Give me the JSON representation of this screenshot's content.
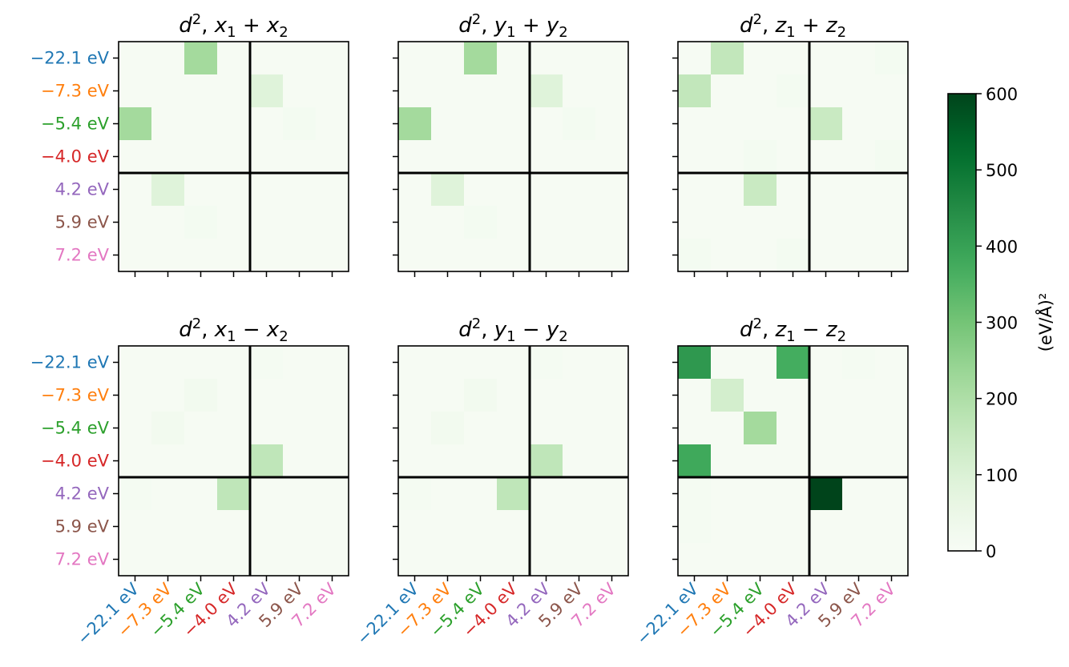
{
  "chart_data": {
    "type": "heatmap",
    "colormap": "Greens",
    "colorbar": {
      "label": "(eV/Å)²",
      "range": [
        0,
        600
      ],
      "ticks": [
        "0",
        "100",
        "200",
        "300",
        "400",
        "500",
        "600"
      ]
    },
    "energy_labels": [
      {
        "text": "−22.1 eV",
        "color": "#1f77b4"
      },
      {
        "text": "−7.3 eV",
        "color": "#ff7f0e"
      },
      {
        "text": "−5.4 eV",
        "color": "#2ca02c"
      },
      {
        "text": "−4.0 eV",
        "color": "#d62728"
      },
      {
        "text": "4.2 eV",
        "color": "#9467bd"
      },
      {
        "text": "5.9 eV",
        "color": "#8c564b"
      },
      {
        "text": "7.2 eV",
        "color": "#e377c2"
      }
    ],
    "panels": [
      {
        "title_parts": [
          "d",
          "2",
          ", ",
          "x",
          "1",
          " + ",
          "x",
          "2"
        ],
        "values": [
          [
            6,
            6,
            220,
            6,
            6,
            6,
            6
          ],
          [
            6,
            6,
            6,
            6,
            90,
            6,
            6
          ],
          [
            220,
            6,
            6,
            6,
            6,
            15,
            6
          ],
          [
            6,
            6,
            6,
            6,
            6,
            6,
            6
          ],
          [
            6,
            90,
            6,
            6,
            6,
            6,
            6
          ],
          [
            6,
            6,
            15,
            6,
            6,
            6,
            6
          ],
          [
            6,
            6,
            6,
            6,
            6,
            6,
            6
          ]
        ]
      },
      {
        "title_parts": [
          "d",
          "2",
          ", ",
          "y",
          "1",
          " + ",
          "y",
          "2"
        ],
        "values": [
          [
            6,
            6,
            220,
            6,
            6,
            6,
            6
          ],
          [
            6,
            6,
            6,
            6,
            90,
            6,
            6
          ],
          [
            220,
            6,
            6,
            6,
            6,
            15,
            6
          ],
          [
            6,
            6,
            6,
            6,
            6,
            6,
            6
          ],
          [
            6,
            90,
            6,
            6,
            6,
            6,
            6
          ],
          [
            6,
            6,
            15,
            6,
            6,
            6,
            6
          ],
          [
            6,
            6,
            6,
            6,
            6,
            6,
            6
          ]
        ]
      },
      {
        "title_parts": [
          "d",
          "2",
          ", ",
          "z",
          "1",
          " + ",
          "z",
          "2"
        ],
        "values": [
          [
            6,
            160,
            6,
            6,
            6,
            6,
            15
          ],
          [
            160,
            6,
            6,
            15,
            6,
            6,
            6
          ],
          [
            6,
            6,
            6,
            6,
            145,
            6,
            6
          ],
          [
            6,
            6,
            15,
            6,
            6,
            6,
            15
          ],
          [
            6,
            6,
            145,
            6,
            6,
            6,
            6
          ],
          [
            6,
            6,
            6,
            6,
            6,
            6,
            6
          ],
          [
            15,
            6,
            6,
            15,
            6,
            6,
            6
          ]
        ]
      },
      {
        "title_parts": [
          "d",
          "2",
          ", ",
          "x",
          "1",
          " − ",
          "x",
          "2"
        ],
        "values": [
          [
            6,
            6,
            6,
            6,
            12,
            6,
            6
          ],
          [
            6,
            6,
            20,
            6,
            6,
            6,
            6
          ],
          [
            6,
            20,
            6,
            6,
            6,
            6,
            6
          ],
          [
            6,
            6,
            6,
            6,
            165,
            6,
            6
          ],
          [
            12,
            6,
            6,
            165,
            6,
            6,
            6
          ],
          [
            6,
            6,
            6,
            6,
            6,
            6,
            6
          ],
          [
            6,
            6,
            6,
            6,
            6,
            6,
            6
          ]
        ]
      },
      {
        "title_parts": [
          "d",
          "2",
          ", ",
          "y",
          "1",
          " − ",
          "y",
          "2"
        ],
        "values": [
          [
            6,
            6,
            6,
            6,
            12,
            6,
            6
          ],
          [
            6,
            6,
            20,
            6,
            6,
            6,
            6
          ],
          [
            6,
            20,
            6,
            6,
            6,
            6,
            6
          ],
          [
            6,
            6,
            6,
            6,
            165,
            6,
            6
          ],
          [
            12,
            6,
            6,
            165,
            6,
            6,
            6
          ],
          [
            6,
            6,
            6,
            6,
            6,
            6,
            6
          ],
          [
            6,
            6,
            6,
            6,
            6,
            6,
            6
          ]
        ]
      },
      {
        "title_parts": [
          "d",
          "2",
          ", ",
          "z",
          "1",
          " − ",
          "z",
          "2"
        ],
        "values": [
          [
            420,
            6,
            6,
            370,
            6,
            12,
            6
          ],
          [
            6,
            120,
            6,
            6,
            6,
            6,
            6
          ],
          [
            6,
            6,
            220,
            6,
            6,
            6,
            6
          ],
          [
            380,
            6,
            6,
            6,
            6,
            6,
            6
          ],
          [
            12,
            6,
            6,
            6,
            600,
            6,
            6
          ],
          [
            12,
            6,
            6,
            6,
            6,
            6,
            6
          ],
          [
            6,
            6,
            6,
            6,
            6,
            6,
            6
          ]
        ]
      }
    ]
  }
}
